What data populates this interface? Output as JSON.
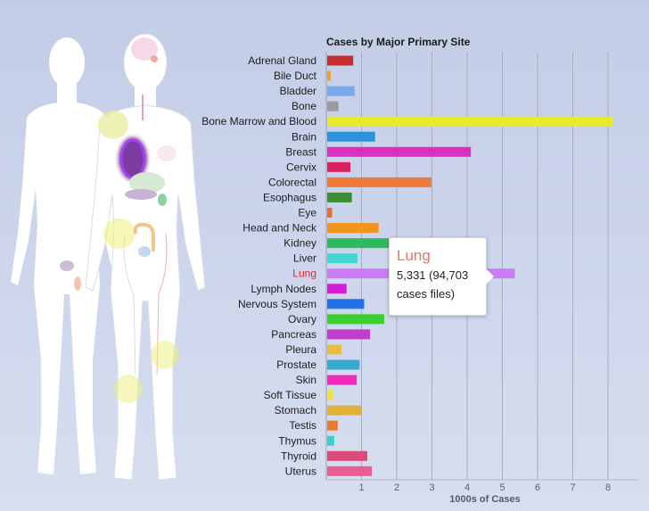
{
  "chart_data": {
    "type": "bar",
    "orientation": "horizontal",
    "title": "Cases by Major Primary Site",
    "xlabel": "1000s of Cases",
    "ylabel": "",
    "xlim": [
      0,
      8.7
    ],
    "xticks": [
      1,
      2,
      3,
      4,
      5,
      6,
      7,
      8
    ],
    "grid": true,
    "categories": [
      "Adrenal Gland",
      "Bile Duct",
      "Bladder",
      "Bone",
      "Bone Marrow and Blood",
      "Brain",
      "Breast",
      "Cervix",
      "Colorectal",
      "Esophagus",
      "Eye",
      "Head and Neck",
      "Kidney",
      "Liver",
      "Lung",
      "Lymph Nodes",
      "Nervous System",
      "Ovary",
      "Pancreas",
      "Pleura",
      "Prostate",
      "Skin",
      "Soft Tissue",
      "Stomach",
      "Testis",
      "Thymus",
      "Thyroid",
      "Uterus"
    ],
    "values": [
      0.74,
      0.1,
      0.78,
      0.32,
      8.1,
      1.36,
      4.08,
      0.66,
      2.96,
      0.7,
      0.14,
      1.46,
      1.76,
      0.86,
      5.331,
      0.55,
      1.05,
      1.62,
      1.22,
      0.41,
      0.92,
      0.84,
      0.17,
      0.96,
      0.3,
      0.2,
      1.14,
      1.27
    ],
    "colors": [
      "#c5302f",
      "#e6a52a",
      "#78a8ee",
      "#9a9a9a",
      "#eaea28",
      "#2b93dc",
      "#dc2fbf",
      "#da2162",
      "#ee7a3a",
      "#3b8c35",
      "#ec6d2c",
      "#f0961f",
      "#2cbc5b",
      "#46d6cf",
      "#cc7cf5",
      "#d21ed6",
      "#2470e8",
      "#3ccf2f",
      "#c33cd0",
      "#e6bf42",
      "#3aa9d2",
      "#ee2bba",
      "#f0e23a",
      "#e0b03a",
      "#e67d32",
      "#37d3cb",
      "#dc4a7a",
      "#ea5c96"
    ],
    "highlighted": "Lung",
    "tooltip": {
      "title": "Lung",
      "line1": "5,331  (94,703",
      "line2": "cases files)"
    }
  }
}
